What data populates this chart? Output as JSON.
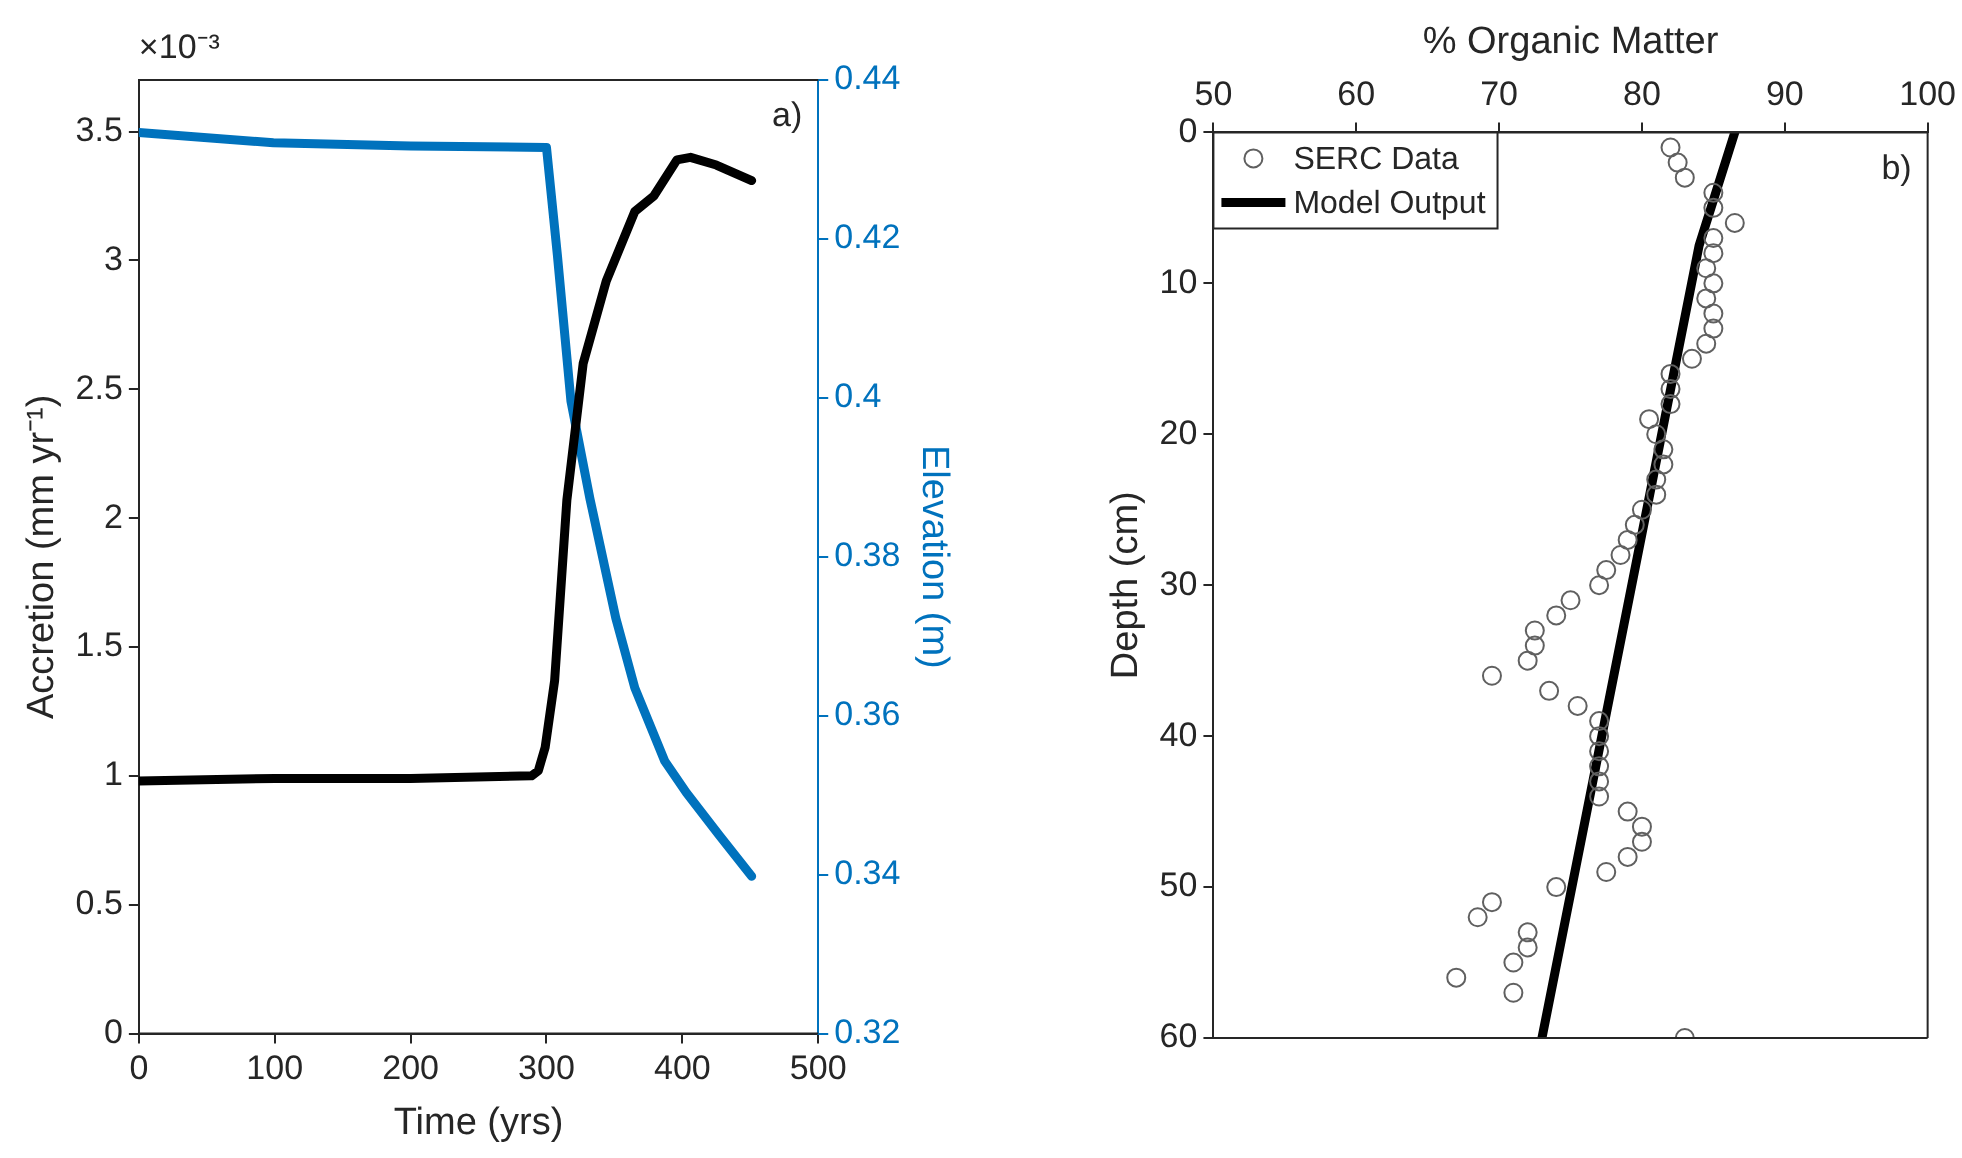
{
  "chart_data": [
    {
      "type": "line",
      "xlabel": "Time (yrs)",
      "ylabel": "Accretion (mm yr⁻¹)",
      "y2label": "Elevation (m)",
      "xlim": [
        0,
        500
      ],
      "xticks": [
        0,
        100,
        200,
        300,
        400,
        500
      ],
      "ylim": [
        0,
        3.7
      ],
      "yticks": [
        0,
        0.5,
        1,
        1.5,
        2,
        2.5,
        3,
        3.5
      ],
      "y2lim": [
        0.32,
        0.44
      ],
      "y2ticks": [
        0.32,
        0.34,
        0.36,
        0.38,
        0.4,
        0.42,
        0.44
      ],
      "grid": false,
      "legend": false,
      "line_style": "solid",
      "marker": "none",
      "annotations": [
        "×10⁻³",
        "a)"
      ],
      "series": [
        {
          "color": "#000000",
          "x": [
            0,
            100,
            200,
            289,
            294,
            299,
            306,
            315,
            327,
            344,
            365,
            379,
            396,
            406,
            425,
            451
          ],
          "values": [
            0.98,
            0.99,
            0.99,
            1.0,
            1.02,
            1.11,
            1.37,
            2.07,
            2.6,
            2.92,
            3.19,
            3.25,
            3.39,
            3.4,
            3.37,
            3.31
          ]
        },
        {
          "color": "#0072bd",
          "axis": "y2",
          "x": [
            0,
            99,
            200,
            300,
            308,
            318,
            332,
            351,
            365,
            387,
            403,
            427,
            451
          ],
          "values": [
            0.4334,
            0.4321,
            0.4317,
            0.4315,
            0.418,
            0.3996,
            0.3873,
            0.3723,
            0.3635,
            0.3543,
            0.3503,
            0.345,
            0.3398
          ]
        }
      ]
    },
    {
      "type": "scatter",
      "xlabel": "% Organic Matter",
      "ylabel": "Depth (cm)",
      "xlim": [
        50,
        100
      ],
      "xticks": [
        50,
        60,
        70,
        80,
        90,
        100
      ],
      "ylim": [
        60,
        0
      ],
      "yticks": [
        0,
        10,
        20,
        30,
        40,
        50,
        60
      ],
      "grid": false,
      "legend": "top left",
      "annotations": [
        "b)"
      ],
      "series": [
        {
          "name": "SERC Data",
          "type": "scatter",
          "marker": "circle",
          "color": "#606060",
          "x": [
            82,
            82.5,
            83,
            85,
            85,
            86.5,
            85,
            85,
            84.5,
            85,
            84.5,
            85,
            85,
            84.5,
            83.5,
            82,
            82,
            82,
            80.5,
            81,
            81.5,
            81.5,
            81,
            81,
            80,
            79.5,
            79,
            78.5,
            77.5,
            77,
            75,
            74,
            72.5,
            72.5,
            72,
            69.5,
            73.5,
            75.5,
            77,
            77,
            77,
            77,
            77,
            77,
            79,
            80,
            80,
            79,
            77.5,
            74,
            69.5,
            68.5,
            72,
            72,
            71,
            67,
            71,
            83
          ],
          "values": [
            1,
            2,
            3,
            4,
            5,
            6,
            7,
            8,
            9,
            10,
            11,
            12,
            13,
            14,
            15,
            16,
            17,
            18,
            19,
            20,
            21,
            22,
            23,
            24,
            25,
            26,
            27,
            28,
            29,
            30,
            31,
            32,
            33,
            34,
            35,
            36,
            37,
            38,
            39,
            40,
            41,
            42,
            43,
            44,
            45,
            46,
            47,
            48,
            49,
            50,
            51,
            52,
            53,
            54,
            55,
            56,
            57,
            60
          ]
        },
        {
          "name": "Model Output",
          "type": "line",
          "marker": "none",
          "color": "#000000",
          "x": [
            86.5,
            84,
            73
          ],
          "values": [
            0,
            7.5,
            60
          ]
        }
      ]
    }
  ]
}
